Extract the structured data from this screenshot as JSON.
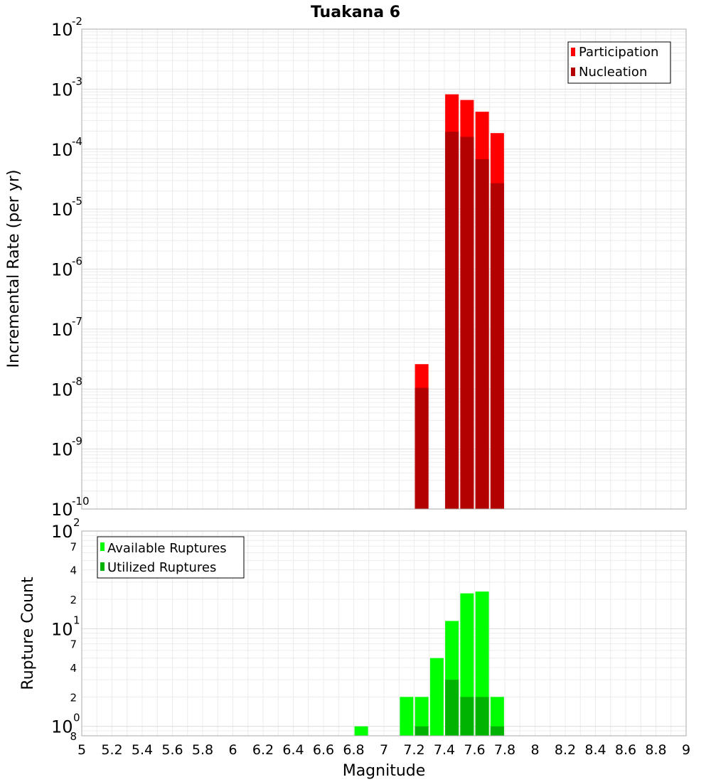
{
  "chart_data": [
    {
      "type": "bar",
      "title": "Tuakana 6",
      "xlabel": "Magnitude",
      "ylabel": "Incremental Rate (per yr)",
      "yscale": "log",
      "ylim": [
        1e-10,
        0.01
      ],
      "xlim": [
        5,
        9
      ],
      "bin_width": 0.1,
      "y_tick_exponents": [
        "-10",
        "-9",
        "-8",
        "-7",
        "-6",
        "-5",
        "-4",
        "-3",
        "-2"
      ],
      "legend": {
        "position": "top-right",
        "entries": [
          "Participation",
          "Nucleation"
        ]
      },
      "colors": {
        "Participation": "#ff0000",
        "Nucleation": "#b30000"
      },
      "x": [
        7.25,
        7.45,
        7.55,
        7.65,
        7.75
      ],
      "series": [
        {
          "name": "Participation",
          "values": [
            2.6e-08,
            0.00082,
            0.00066,
            0.00042,
            0.000185
          ]
        },
        {
          "name": "Nucleation",
          "values": [
            1.05e-08,
            0.000195,
            0.00016,
            6.8e-05,
            2.7e-05
          ]
        }
      ]
    },
    {
      "type": "bar",
      "xlabel": "Magnitude",
      "ylabel": "Rupture Count",
      "yscale": "log",
      "ylim": [
        0.8,
        100
      ],
      "xlim": [
        5,
        9
      ],
      "bin_width": 0.1,
      "x_ticks": [
        "5",
        "5.2",
        "5.4",
        "5.6",
        "5.8",
        "6",
        "6.2",
        "6.4",
        "6.6",
        "6.8",
        "7",
        "7.2",
        "7.4",
        "7.6",
        "7.8",
        "8",
        "8.2",
        "8.4",
        "8.6",
        "8.8",
        "9"
      ],
      "y_major_ticks": [
        {
          "base": "10",
          "exp": "0"
        },
        {
          "base": "10",
          "exp": "1"
        },
        {
          "base": "10",
          "exp": "2"
        }
      ],
      "y_minor_ticks": [
        "8",
        "2",
        "4",
        "7",
        "2",
        "4",
        "7"
      ],
      "legend": {
        "position": "top-left",
        "entries": [
          "Available Ruptures",
          "Utilized Ruptures"
        ]
      },
      "colors": {
        "Available Ruptures": "#00ff00",
        "Utilized Ruptures": "#00b300"
      },
      "x": [
        6.85,
        7.15,
        7.25,
        7.35,
        7.45,
        7.55,
        7.65,
        7.75
      ],
      "series": [
        {
          "name": "Available Ruptures",
          "values": [
            1,
            2,
            2,
            5,
            12,
            23,
            24,
            2
          ]
        },
        {
          "name": "Utilized Ruptures",
          "values": [
            0,
            0,
            1,
            0,
            3,
            2,
            2,
            1
          ]
        }
      ]
    }
  ]
}
